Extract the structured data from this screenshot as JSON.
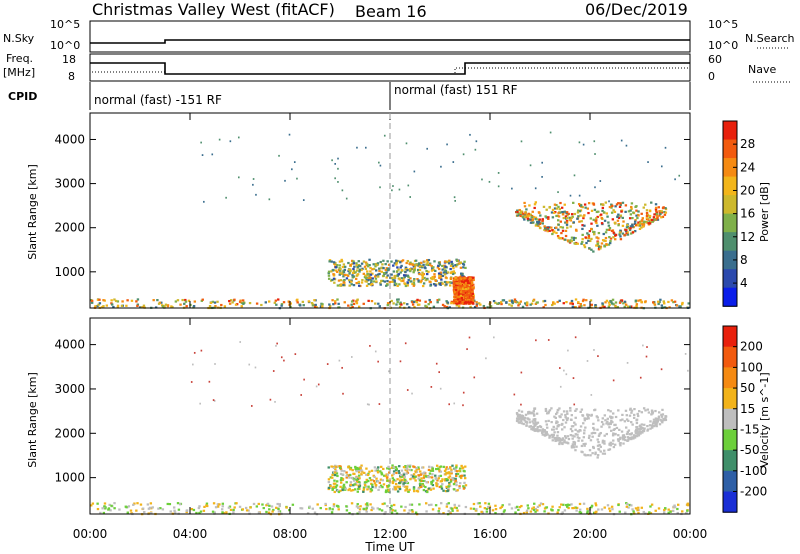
{
  "header": {
    "title": "Christmas Valley West (fitACF)",
    "beam": "Beam 16",
    "date": "06/Dec/2019"
  },
  "strips": {
    "nsky": {
      "left_label": "N.Sky",
      "right_label": "N.Search",
      "left_ticks": [
        "10^5",
        "10^0"
      ],
      "right_ticks": [
        "10^5",
        "10^0"
      ]
    },
    "freq": {
      "left_label_1": "Freq.",
      "left_label_2": "[MHz]",
      "right_label": "Nave",
      "left_ticks": [
        "18",
        "8"
      ],
      "right_ticks": [
        "60",
        "0"
      ]
    },
    "cpid": {
      "label": "CPID",
      "modes": [
        "normal (fast) -151 RF",
        "normal (fast) 151 RF"
      ]
    }
  },
  "chart_data": [
    {
      "type": "heatmap",
      "name": "power",
      "ylabel": "Slant Range [km]",
      "ylim": [
        180,
        4600
      ],
      "yticks": [
        "1000",
        "2000",
        "3000",
        "4000"
      ],
      "xlabel": "",
      "xticks": [
        "00:00",
        "04:00",
        "08:00",
        "12:00",
        "16:00",
        "20:00",
        "00:00"
      ],
      "colorbar": {
        "label": "Power [dB]",
        "ticks": [
          "4",
          "8",
          "12",
          "16",
          "20",
          "24",
          "28"
        ],
        "colors": [
          "#0a1eea",
          "#2b49ad",
          "#3a6e8e",
          "#4f8f6e",
          "#7fb04a",
          "#cdb82c",
          "#f2b51a",
          "#f58a12",
          "#f25a0e",
          "#e8200c"
        ]
      },
      "regions": [
        {
          "label": "near-range band",
          "t": [
            0.0,
            24.0
          ],
          "range_km": [
            200,
            400
          ],
          "power_db": [
            8,
            28
          ]
        },
        {
          "label": "midday band",
          "t": [
            9.5,
            15.0
          ],
          "range_km": [
            700,
            1300
          ],
          "power_db": [
            6,
            24
          ]
        },
        {
          "label": "afternoon patch",
          "t": [
            14.5,
            15.3
          ],
          "range_km": [
            300,
            900
          ],
          "power_db": [
            20,
            30
          ]
        },
        {
          "label": "evening scatter",
          "t": [
            17.0,
            23.0
          ],
          "range_km": [
            1400,
            2600
          ],
          "power_db": [
            8,
            30
          ]
        }
      ]
    },
    {
      "type": "heatmap",
      "name": "velocity",
      "ylabel": "Slant Range [km]",
      "ylim": [
        180,
        4600
      ],
      "yticks": [
        "1000",
        "2000",
        "3000",
        "4000"
      ],
      "xlabel": "Time UT",
      "xticks": [
        "00:00",
        "04:00",
        "08:00",
        "12:00",
        "16:00",
        "20:00",
        "00:00"
      ],
      "colorbar": {
        "label": "Velocity [m s^-1]",
        "ticks": [
          "200",
          "100",
          "50",
          "15",
          "-15",
          "-50",
          "-100",
          "-200"
        ],
        "colors": [
          "#1a2fd6",
          "#2e5fa6",
          "#3f8f6a",
          "#6ccf3a",
          "#bebebe",
          "#f2b31a",
          "#f58a12",
          "#f25a0e",
          "#e8200c"
        ]
      },
      "regions": [
        {
          "label": "near-range band",
          "t": [
            0.0,
            24.0
          ],
          "range_km": [
            200,
            450
          ],
          "velocity_ms": [
            -50,
            50
          ]
        },
        {
          "label": "midday band",
          "t": [
            9.5,
            15.0
          ],
          "range_km": [
            700,
            1300
          ],
          "velocity_ms": [
            -60,
            60
          ]
        },
        {
          "label": "evening scatter",
          "t": [
            17.0,
            23.0
          ],
          "range_km": [
            1400,
            2600
          ],
          "velocity_ms": [
            -15,
            15
          ]
        }
      ]
    }
  ]
}
